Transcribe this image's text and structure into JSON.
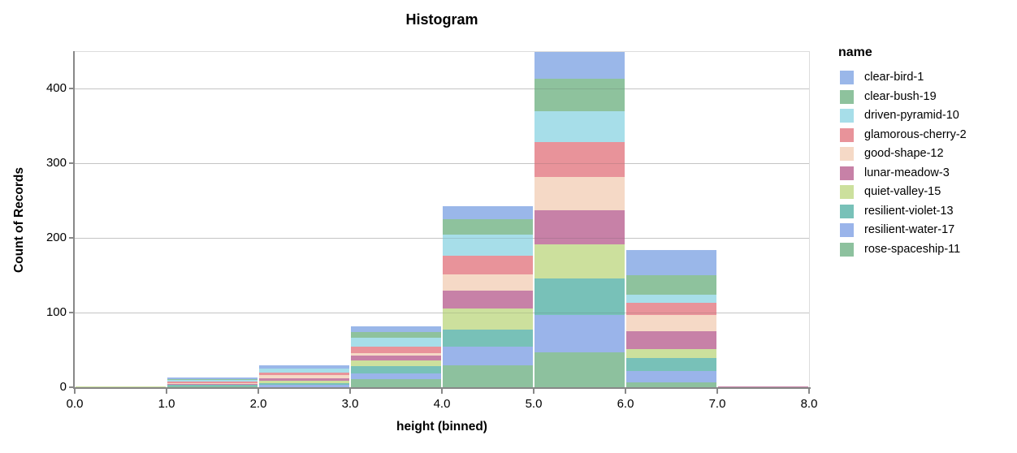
{
  "title": "Histogram",
  "x_axis": {
    "title": "height (binned)",
    "tick_labels": [
      "0.0",
      "1.0",
      "2.0",
      "3.0",
      "4.0",
      "5.0",
      "6.0",
      "7.0",
      "8.0"
    ]
  },
  "y_axis": {
    "title": "Count of Records",
    "tick_labels": [
      "0",
      "100",
      "200",
      "300",
      "400"
    ],
    "tick_values": [
      0,
      100,
      200,
      300,
      400
    ]
  },
  "legend": {
    "title": "name",
    "items": [
      {
        "label": "clear-bird-1",
        "color": "#9ab7e9"
      },
      {
        "label": "clear-bush-19",
        "color": "#8ec29d"
      },
      {
        "label": "driven-pyramid-10",
        "color": "#a7dee9"
      },
      {
        "label": "glamorous-cherry-2",
        "color": "#e8939a"
      },
      {
        "label": "good-shape-12",
        "color": "#f5d9c6"
      },
      {
        "label": "lunar-meadow-3",
        "color": "#c781a7"
      },
      {
        "label": "quiet-valley-15",
        "color": "#cce09d"
      },
      {
        "label": "resilient-violet-13",
        "color": "#78c1b8"
      },
      {
        "label": "resilient-water-17",
        "color": "#9ab4ea"
      },
      {
        "label": "rose-spaceship-11",
        "color": "#8dc19e"
      }
    ]
  },
  "chart_data": {
    "type": "bar",
    "subtype": "stacked-histogram",
    "title": "Histogram",
    "xlabel": "height (binned)",
    "ylabel": "Count of Records",
    "bin_edges": [
      0,
      1,
      2,
      3,
      4,
      5,
      6,
      7,
      8
    ],
    "xlim": [
      0,
      8
    ],
    "ylim": [
      0,
      450
    ],
    "grid": true,
    "legend_position": "right",
    "stack_order": "reverse-legend (last legend item at bottom)",
    "bin_totals": [
      2,
      14,
      31,
      83,
      244,
      450,
      185,
      2
    ],
    "series": [
      {
        "name": "clear-bird-1",
        "color": "#9ab7e9",
        "values": [
          0,
          2,
          5,
          8,
          18,
          36,
          34,
          0
        ]
      },
      {
        "name": "clear-bush-19",
        "color": "#8ec29d",
        "values": [
          0,
          1,
          0,
          8,
          21,
          43,
          26,
          0
        ]
      },
      {
        "name": "driven-pyramid-10",
        "color": "#a7dee9",
        "values": [
          0,
          2,
          5,
          12,
          28,
          42,
          11,
          0
        ]
      },
      {
        "name": "glamorous-cherry-2",
        "color": "#e8939a",
        "values": [
          0,
          2,
          4,
          8,
          25,
          46,
          16,
          0
        ]
      },
      {
        "name": "good-shape-12",
        "color": "#f5d9c6",
        "values": [
          0,
          1,
          4,
          4,
          22,
          45,
          22,
          0
        ]
      },
      {
        "name": "lunar-meadow-3",
        "color": "#c781a7",
        "values": [
          0,
          1,
          3,
          6,
          23,
          46,
          24,
          2
        ]
      },
      {
        "name": "quiet-valley-15",
        "color": "#cce09d",
        "values": [
          2,
          1,
          3,
          8,
          29,
          45,
          12,
          0
        ]
      },
      {
        "name": "resilient-violet-13",
        "color": "#78c1b8",
        "values": [
          0,
          2,
          3,
          9,
          23,
          49,
          17,
          0
        ]
      },
      {
        "name": "resilient-water-17",
        "color": "#9ab4ea",
        "values": [
          0,
          0,
          3,
          8,
          25,
          50,
          15,
          0
        ]
      },
      {
        "name": "rose-spaceship-11",
        "color": "#8dc19e",
        "values": [
          0,
          2,
          1,
          12,
          30,
          48,
          8,
          0
        ]
      }
    ]
  }
}
